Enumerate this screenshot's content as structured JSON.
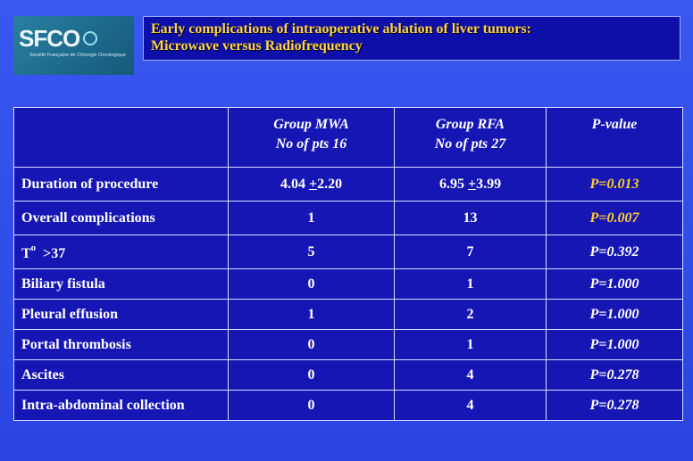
{
  "logo": {
    "brand": "SFCO",
    "tagline": "Société Française de Chirurgie Oncologique"
  },
  "title": {
    "line1": "Early complications of intraoperative ablation of  liver tumors:",
    "line2": "Microwave versus Radiofrequency"
  },
  "table": {
    "headers": {
      "empty": "",
      "mwa_group": "Group MWA",
      "mwa_pts": "No of pts 16",
      "rfa_group": "Group RFA",
      "rfa_pts": "No of pts 27",
      "pvalue": "P-value"
    },
    "rows": [
      {
        "label": "Duration of procedure",
        "mwa_prefix": "4.04 ",
        "mwa_pm": "+",
        "mwa_suffix": "2.20",
        "rfa_prefix": "6.95 ",
        "rfa_pm": "+",
        "rfa_suffix": "3.99",
        "p": "P=0.013",
        "significant": true
      },
      {
        "label": "Overall complications",
        "mwa": "1",
        "rfa": "13",
        "p": "P=0.007",
        "significant": true
      },
      {
        "label_prefix": "T",
        "label_degree": "o",
        "label_suffix": "  >37",
        "mwa": "5",
        "rfa": "7",
        "p": "P=0.392",
        "significant": false
      },
      {
        "label": "Biliary fistula",
        "mwa": "0",
        "rfa": "1",
        "p": "P=1.000",
        "significant": false
      },
      {
        "label": "Pleural effusion",
        "mwa": "1",
        "rfa": "2",
        "p": "P=1.000",
        "significant": false
      },
      {
        "label": "Portal thrombosis",
        "mwa": "0",
        "rfa": "1",
        "p": "P=1.000",
        "significant": false
      },
      {
        "label": "Ascites",
        "mwa": "0",
        "rfa": "4",
        "p": "P=0.278",
        "significant": false
      },
      {
        "label": "Intra-abdominal collection",
        "mwa": "0",
        "rfa": "4",
        "p": "P=0.278",
        "significant": false
      }
    ]
  },
  "colors": {
    "background": "#3150ea",
    "title_box": "#0e0fa8",
    "title_text": "#ffd34a",
    "table_bg": "#1616b5",
    "significant_p": "#ffcf2b"
  }
}
